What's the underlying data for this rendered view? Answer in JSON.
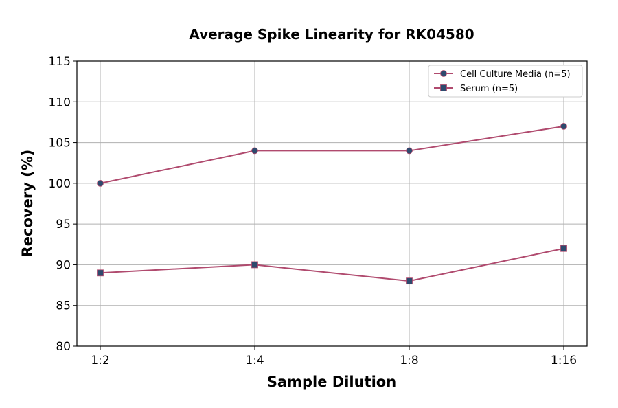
{
  "chart_data": {
    "type": "line",
    "title": "Average Spike Linearity for RK04580",
    "xlabel": "Sample Dilution",
    "ylabel": "Recovery (%)",
    "categories": [
      "1:2",
      "1:4",
      "1:8",
      "1:16"
    ],
    "ylim": [
      80,
      115
    ],
    "yticks": [
      80,
      85,
      90,
      95,
      100,
      105,
      110,
      115
    ],
    "grid": true,
    "legend_position": "top-right",
    "series": [
      {
        "name": "Cell Culture Media (n=5)",
        "values": [
          100,
          104,
          104,
          107
        ],
        "marker": "circle",
        "line_color": "#b04a6e",
        "marker_color": "#2e4a6e"
      },
      {
        "name": "Serum (n=5)",
        "values": [
          89,
          90,
          88,
          92
        ],
        "marker": "square",
        "line_color": "#b04a6e",
        "marker_color": "#2e4a6e"
      }
    ]
  }
}
